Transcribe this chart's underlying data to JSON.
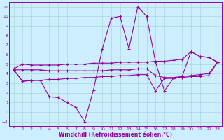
{
  "xlabel": "Windchill (Refroidissement éolien,°C)",
  "bg_color": "#cceeff",
  "line_color": "#990099",
  "grid_color": "#aad8d8",
  "xlim": [
    -0.5,
    23.5
  ],
  "ylim": [
    -1.5,
    11.5
  ],
  "xticks": [
    0,
    1,
    2,
    3,
    4,
    5,
    6,
    7,
    8,
    9,
    10,
    11,
    12,
    13,
    14,
    15,
    16,
    17,
    18,
    19,
    20,
    21,
    22,
    23
  ],
  "yticks": [
    -1,
    0,
    1,
    2,
    3,
    4,
    5,
    6,
    7,
    8,
    9,
    10,
    11
  ],
  "line_jagged_x": [
    0,
    1,
    2,
    3,
    4,
    5,
    6,
    7,
    8,
    9,
    10,
    11,
    12,
    13,
    14,
    15,
    16,
    17,
    18,
    19,
    20,
    21,
    22,
    23
  ],
  "line_jagged_y": [
    4.4,
    3.2,
    3.3,
    3.3,
    1.6,
    1.5,
    1.0,
    0.5,
    -1.0,
    2.3,
    6.6,
    9.8,
    10.0,
    6.6,
    11.0,
    10.0,
    5.2,
    2.2,
    3.5,
    3.7,
    6.3,
    5.8,
    5.7,
    5.2
  ],
  "line_upper_x": [
    0,
    1,
    2,
    3,
    4,
    5,
    6,
    7,
    8,
    9,
    10,
    11,
    12,
    13,
    14,
    15,
    16,
    17,
    18,
    19,
    20,
    21,
    22,
    23
  ],
  "line_upper_y": [
    4.5,
    5.0,
    4.9,
    4.9,
    4.9,
    4.9,
    5.0,
    5.0,
    5.0,
    5.1,
    5.1,
    5.1,
    5.2,
    5.2,
    5.2,
    5.2,
    5.3,
    5.3,
    5.4,
    5.5,
    6.3,
    5.8,
    5.7,
    5.2
  ],
  "line_mid_x": [
    0,
    1,
    2,
    3,
    4,
    5,
    6,
    7,
    8,
    9,
    10,
    11,
    12,
    13,
    14,
    15,
    16,
    17,
    18,
    19,
    20,
    21,
    22,
    23
  ],
  "line_mid_y": [
    4.4,
    4.4,
    4.4,
    4.4,
    4.3,
    4.3,
    4.3,
    4.3,
    4.3,
    4.3,
    4.3,
    4.4,
    4.4,
    4.4,
    4.5,
    4.5,
    3.8,
    3.6,
    3.6,
    3.7,
    3.8,
    3.9,
    4.0,
    5.2
  ],
  "line_low_x": [
    0,
    1,
    2,
    3,
    4,
    5,
    6,
    7,
    8,
    9,
    10,
    11,
    12,
    13,
    14,
    15,
    16,
    17,
    18,
    19,
    20,
    21,
    22,
    23
  ],
  "line_low_y": [
    4.4,
    3.2,
    3.3,
    3.3,
    3.4,
    3.4,
    3.5,
    3.5,
    3.6,
    3.6,
    3.7,
    3.7,
    3.8,
    3.8,
    3.9,
    3.9,
    2.2,
    3.5,
    3.5,
    3.6,
    3.7,
    3.7,
    3.8,
    5.2
  ]
}
